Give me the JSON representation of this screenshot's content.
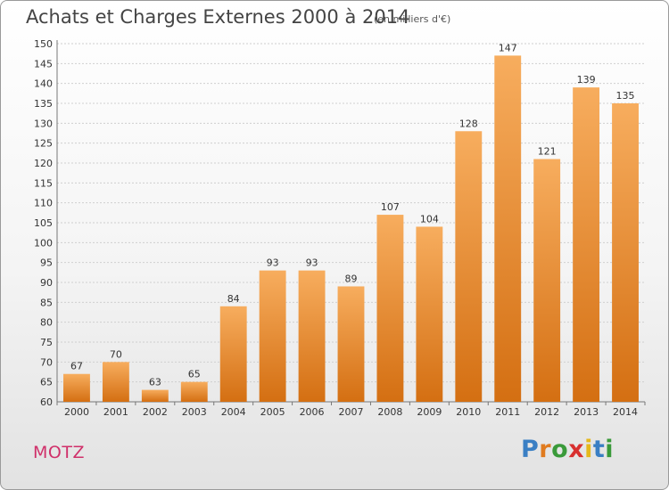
{
  "title": "Achats et Charges Externes 2000 à 2014",
  "subtitle": "(en milliers d'€)",
  "place": "MOTZ",
  "logo": {
    "letters": [
      {
        "ch": "P",
        "color": "#3a7fc4"
      },
      {
        "ch": "r",
        "color": "#e07b1f"
      },
      {
        "ch": "o",
        "color": "#3a9a3a"
      },
      {
        "ch": "x",
        "color": "#d8302f"
      },
      {
        "ch": "i",
        "color": "#e5b81b"
      },
      {
        "ch": "t",
        "color": "#3a7fc4"
      },
      {
        "ch": "i",
        "color": "#3a9a3a"
      }
    ]
  },
  "chart_data": {
    "type": "bar",
    "categories": [
      "2000",
      "2001",
      "2002",
      "2003",
      "2004",
      "2005",
      "2006",
      "2007",
      "2008",
      "2009",
      "2010",
      "2011",
      "2012",
      "2013",
      "2014"
    ],
    "values": [
      67,
      70,
      63,
      65,
      84,
      93,
      93,
      89,
      107,
      104,
      128,
      147,
      121,
      139,
      135
    ],
    "ylim": [
      60,
      150
    ],
    "yticks": [
      60,
      65,
      70,
      75,
      80,
      85,
      90,
      95,
      100,
      105,
      110,
      115,
      120,
      125,
      130,
      135,
      140,
      145,
      150
    ],
    "bar_color": "#f0922f",
    "bar_color_light": "#f7ad5e",
    "bar_color_dark": "#d46f12",
    "grid": true
  }
}
